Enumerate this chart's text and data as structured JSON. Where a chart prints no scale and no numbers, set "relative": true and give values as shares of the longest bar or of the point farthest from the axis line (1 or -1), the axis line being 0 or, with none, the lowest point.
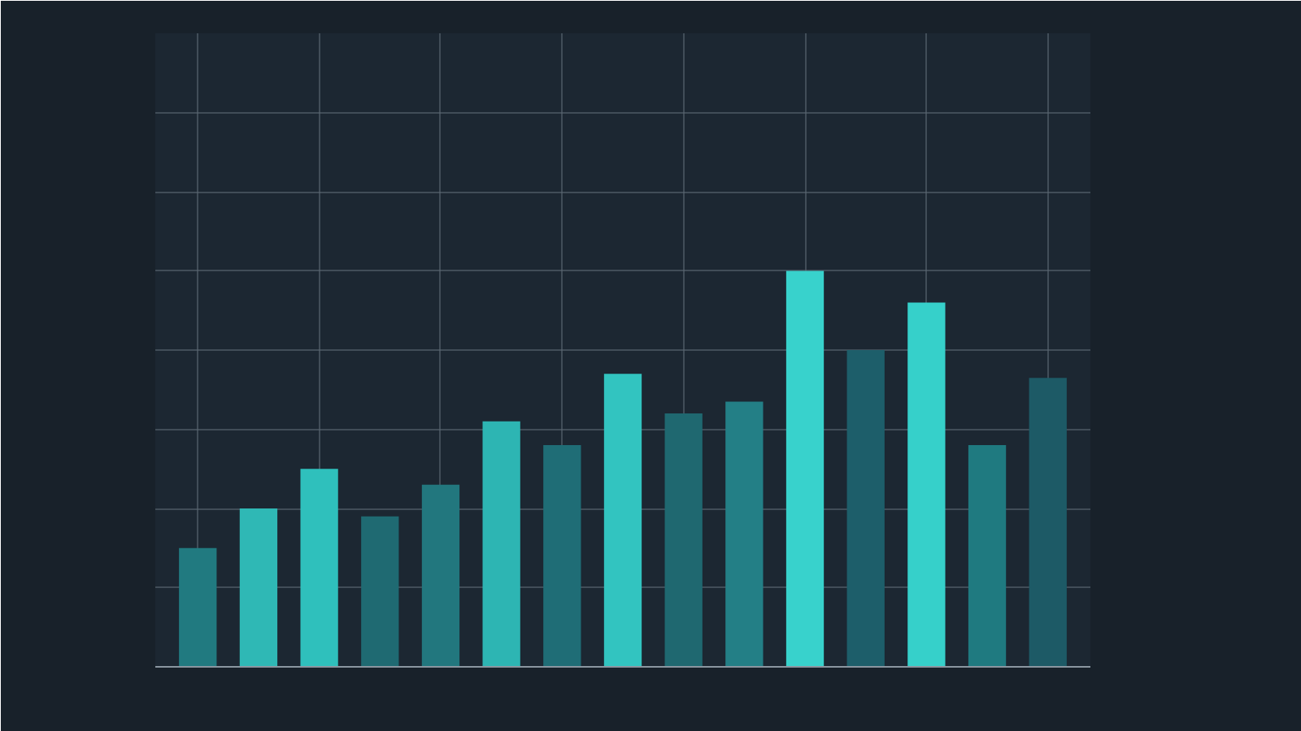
{
  "chart_data": {
    "type": "bar",
    "relative": true,
    "categories": [
      null,
      null,
      null,
      null,
      null,
      null,
      null,
      null,
      null,
      null,
      null,
      null,
      null,
      null,
      null
    ],
    "values": [
      0.3,
      0.4,
      0.5,
      0.38,
      0.46,
      0.62,
      0.56,
      0.74,
      0.64,
      0.67,
      1,
      0.8,
      0.92,
      0.56,
      0.73
    ],
    "colors": [
      "#217a80",
      "#2fb8b5",
      "#2fc0bc",
      "#1f6a72",
      "#22777e",
      "#2db5b3",
      "#1f6d76",
      "#32c4c0",
      "#1f6870",
      "#237f86",
      "#38d2cc",
      "#1d5e6a",
      "#36d0ca",
      "#1f7a80",
      "#1d5a66"
    ],
    "grid": true
  }
}
